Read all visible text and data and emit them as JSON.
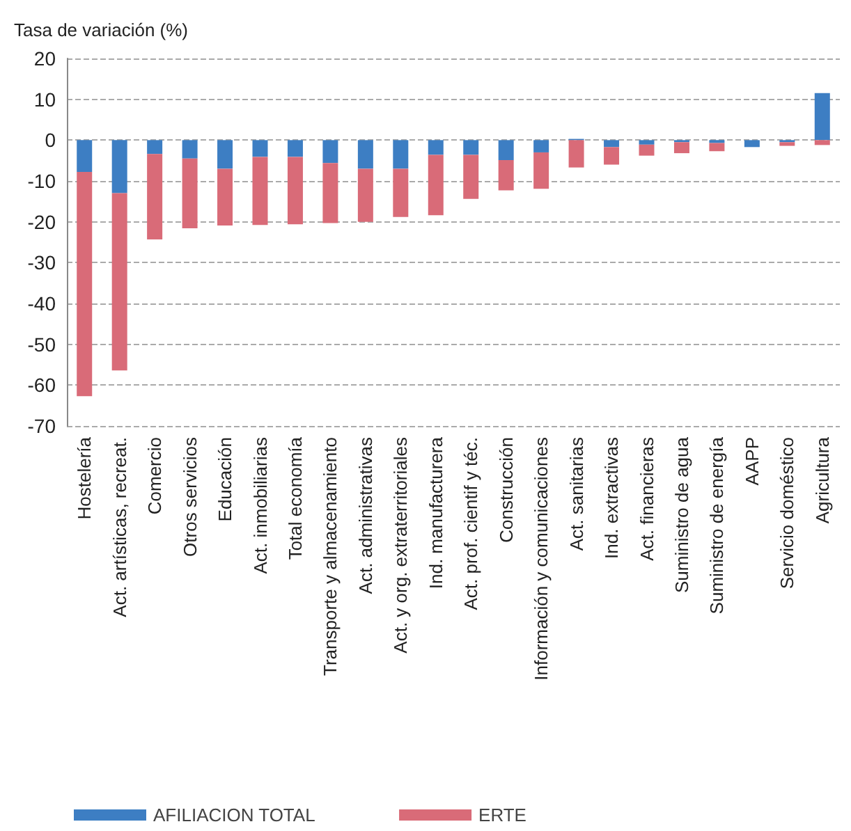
{
  "chart_data": {
    "type": "bar",
    "stacked": true,
    "ylabel": "Tasa de variación (%)",
    "categories": [
      "Hostelería",
      "Act. artísticas, recreat.",
      "Comercio",
      "Otros servicios",
      "Educación",
      "Act. inmobiliarias",
      "Total economía",
      "Transporte y almacenamiento",
      "Act. administrativas",
      "Act. y org. extraterritoriales",
      "Ind. manufacturera",
      "Act. prof. cientif y téc.",
      "Construcción",
      "Información y comunicaciones",
      "Act. sanitarias",
      "Ind. extractivas",
      "Act. financieras",
      "Suministro de agua",
      "Suministro de energía",
      "AAPP",
      "Servicio doméstico",
      "Agricultura"
    ],
    "series": [
      {
        "name": "AFILIACION TOTAL",
        "color": "#3d7ec3",
        "values": [
          -7.8,
          -13,
          -3.4,
          -4.5,
          -7,
          -4.1,
          -4.1,
          -5.6,
          -7,
          -7,
          -3.6,
          -3.6,
          -4.9,
          -3,
          0.3,
          -1.7,
          -1.1,
          -0.5,
          -0.7,
          -1.7,
          -0.5,
          11.5
        ]
      },
      {
        "name": "ERTE",
        "color": "#d96b78",
        "values": [
          -54.9,
          -43.4,
          -20.9,
          -17.1,
          -13.9,
          -16.7,
          -16.5,
          -14.7,
          -13,
          -11.8,
          -14.8,
          -10.8,
          -7.4,
          -8.9,
          -6.7,
          -4.3,
          -2.7,
          -2.7,
          -2,
          0,
          -0.9,
          -1.2
        ]
      }
    ],
    "ylim": [
      -70,
      20
    ],
    "yticks": [
      20,
      10,
      0,
      -10,
      -20,
      -30,
      -40,
      -50,
      -60,
      -70
    ],
    "grid": "y",
    "legend": "bottom left"
  }
}
